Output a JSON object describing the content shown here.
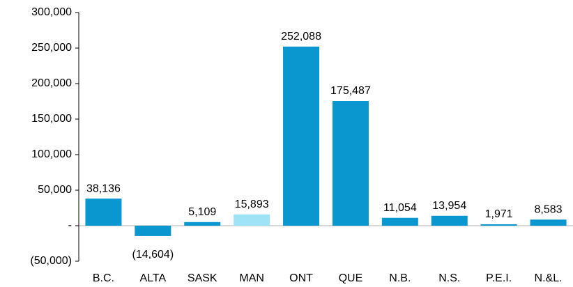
{
  "chart_data": {
    "type": "bar",
    "categories": [
      "B.C.",
      "ALTA",
      "SASK",
      "MAN",
      "ONT",
      "QUE",
      "N.B.",
      "N.S.",
      "P.E.I.",
      "N.&L."
    ],
    "values": [
      38136,
      -14604,
      5109,
      15893,
      252088,
      175487,
      11054,
      13954,
      1971,
      8583
    ],
    "value_labels": [
      "38,136",
      "(14,604)",
      "5,109",
      "15,893",
      "252,088",
      "175,487",
      "11,054",
      "13,954",
      "1,971",
      "8,583"
    ],
    "colors": [
      "#0a96cf",
      "#0a96cf",
      "#0a96cf",
      "#9fe3f7",
      "#0a96cf",
      "#0a96cf",
      "#0a96cf",
      "#0a96cf",
      "#0a96cf",
      "#0a96cf"
    ],
    "ylim": [
      -50000,
      300000
    ],
    "yticks": [
      {
        "value": -50000,
        "label": "(50,000)"
      },
      {
        "value": 0,
        "label": "-"
      },
      {
        "value": 50000,
        "label": "50,000"
      },
      {
        "value": 100000,
        "label": "100,000"
      },
      {
        "value": 150000,
        "label": "150,000"
      },
      {
        "value": 200000,
        "label": "200,000"
      },
      {
        "value": 250000,
        "label": "250,000"
      },
      {
        "value": 300000,
        "label": "300,000"
      }
    ]
  }
}
